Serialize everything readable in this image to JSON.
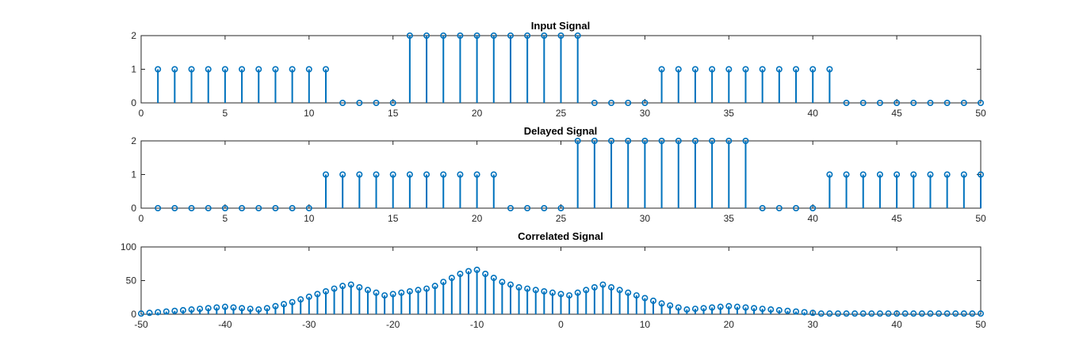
{
  "style": {
    "stem_color": "#0072BD",
    "axis_color": "#262626",
    "background": "#ffffff"
  },
  "chart_data": [
    {
      "type": "stem",
      "title": "Input Signal",
      "xlim": [
        0,
        50
      ],
      "ylim": [
        0,
        2
      ],
      "xticks": [
        0,
        5,
        10,
        15,
        20,
        25,
        30,
        35,
        40,
        45,
        50
      ],
      "yticks": [
        0,
        1,
        2
      ],
      "x": [
        1,
        2,
        3,
        4,
        5,
        6,
        7,
        8,
        9,
        10,
        11,
        12,
        13,
        14,
        15,
        16,
        17,
        18,
        19,
        20,
        21,
        22,
        23,
        24,
        25,
        26,
        27,
        28,
        29,
        30,
        31,
        32,
        33,
        34,
        35,
        36,
        37,
        38,
        39,
        40,
        41,
        42,
        43,
        44,
        45,
        46,
        47,
        48,
        49,
        50
      ],
      "y": [
        1,
        1,
        1,
        1,
        1,
        1,
        1,
        1,
        1,
        1,
        1,
        0,
        0,
        0,
        0,
        2,
        2,
        2,
        2,
        2,
        2,
        2,
        2,
        2,
        2,
        2,
        0,
        0,
        0,
        0,
        1,
        1,
        1,
        1,
        1,
        1,
        1,
        1,
        1,
        1,
        1,
        0,
        0,
        0,
        0,
        0,
        0,
        0,
        0,
        0
      ]
    },
    {
      "type": "stem",
      "title": "Delayed Signal",
      "xlim": [
        0,
        50
      ],
      "ylim": [
        0,
        2
      ],
      "xticks": [
        0,
        5,
        10,
        15,
        20,
        25,
        30,
        35,
        40,
        45,
        50
      ],
      "yticks": [
        0,
        1,
        2
      ],
      "x": [
        1,
        2,
        3,
        4,
        5,
        6,
        7,
        8,
        9,
        10,
        11,
        12,
        13,
        14,
        15,
        16,
        17,
        18,
        19,
        20,
        21,
        22,
        23,
        24,
        25,
        26,
        27,
        28,
        29,
        30,
        31,
        32,
        33,
        34,
        35,
        36,
        37,
        38,
        39,
        40,
        41,
        42,
        43,
        44,
        45,
        46,
        47,
        48,
        49,
        50
      ],
      "y": [
        0,
        0,
        0,
        0,
        0,
        0,
        0,
        0,
        0,
        0,
        1,
        1,
        1,
        1,
        1,
        1,
        1,
        1,
        1,
        1,
        1,
        0,
        0,
        0,
        0,
        2,
        2,
        2,
        2,
        2,
        2,
        2,
        2,
        2,
        2,
        2,
        0,
        0,
        0,
        0,
        1,
        1,
        1,
        1,
        1,
        1,
        1,
        1,
        1,
        1
      ]
    },
    {
      "type": "stem",
      "title": "Correlated Signal",
      "xlim": [
        -50,
        50
      ],
      "ylim": [
        0,
        100
      ],
      "xticks": [
        -50,
        -40,
        -30,
        -20,
        -10,
        0,
        10,
        20,
        30,
        40,
        50
      ],
      "yticks": [
        0,
        50,
        100
      ],
      "x": [
        -50,
        -49,
        -48,
        -47,
        -46,
        -45,
        -44,
        -43,
        -42,
        -41,
        -40,
        -39,
        -38,
        -37,
        -36,
        -35,
        -34,
        -33,
        -32,
        -31,
        -30,
        -29,
        -28,
        -27,
        -26,
        -25,
        -24,
        -23,
        -22,
        -21,
        -20,
        -19,
        -18,
        -17,
        -16,
        -15,
        -14,
        -13,
        -12,
        -11,
        -10,
        -9,
        -8,
        -7,
        -6,
        -5,
        -4,
        -3,
        -2,
        -1,
        0,
        1,
        2,
        3,
        4,
        5,
        6,
        7,
        8,
        9,
        10,
        11,
        12,
        13,
        14,
        15,
        16,
        17,
        18,
        19,
        20,
        21,
        22,
        23,
        24,
        25,
        26,
        27,
        28,
        29,
        30,
        31,
        32,
        33,
        34,
        35,
        36,
        37,
        38,
        39,
        40,
        41,
        42,
        43,
        44,
        45,
        46,
        47,
        48,
        49,
        50
      ],
      "y": [
        1,
        2,
        3,
        4,
        5,
        6,
        7,
        8,
        9,
        10,
        11,
        10,
        9,
        8,
        7,
        9,
        12,
        15,
        18,
        22,
        26,
        30,
        34,
        38,
        42,
        44,
        40,
        36,
        32,
        28,
        30,
        32,
        34,
        36,
        38,
        42,
        48,
        54,
        60,
        64,
        66,
        60,
        54,
        48,
        44,
        40,
        38,
        36,
        34,
        32,
        30,
        28,
        32,
        36,
        40,
        44,
        40,
        36,
        32,
        28,
        24,
        20,
        16,
        13,
        10,
        7,
        8,
        9,
        10,
        11,
        12,
        11,
        10,
        9,
        8,
        7,
        6,
        5,
        4,
        3,
        2,
        1,
        1,
        1,
        1,
        1,
        1,
        1,
        1,
        1,
        1,
        1,
        1,
        1,
        1,
        1,
        1,
        1,
        1,
        1,
        1
      ]
    }
  ]
}
